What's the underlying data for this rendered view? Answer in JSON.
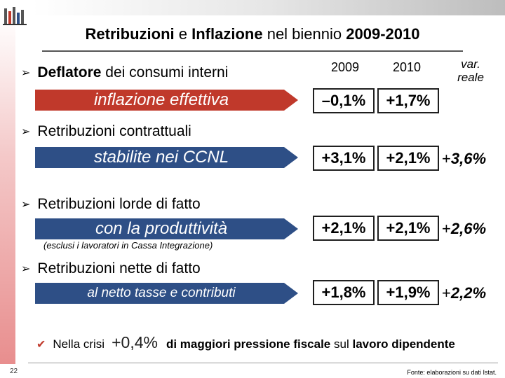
{
  "title": {
    "part1": "Retribuzioni",
    "part2": "e",
    "part3": "Inflazione",
    "part4": "nel biennio",
    "part5": "2009-2010"
  },
  "columns": {
    "y2009": "2009",
    "y2010": "2010",
    "var_line1": "var.",
    "var_line2": "reale"
  },
  "rows": [
    {
      "bullet_bold": "Deflatore",
      "bullet_rest": "dei consumi interni",
      "banner": "inflazione effettiva",
      "banner_color": "#c0392b",
      "v2009": "–0,1%",
      "v2010": "+1,7%",
      "var_plus": "",
      "var_value": ""
    },
    {
      "bullet_bold": "Retribuzioni contrattuali",
      "bullet_rest": "",
      "banner": "stabilite nei CCNL",
      "banner_color": "#2e4f86",
      "v2009": "+3,1%",
      "v2010": "+2,1%",
      "var_plus": "+",
      "var_value": "3,6%"
    },
    {
      "bullet_bold": "Retribuzioni lorde di fatto",
      "bullet_rest": "",
      "banner": "con la produttività",
      "banner_color": "#2e4f86",
      "v2009": "+2,1%",
      "v2010": "+2,1%",
      "var_plus": "+",
      "var_value": "2,6%"
    },
    {
      "bullet_bold": "Retribuzioni nette di fatto",
      "bullet_rest": "",
      "banner": "al netto tasse e contributi",
      "banner_color": "#2e4f86",
      "v2009": "+1,8%",
      "v2010": "+1,9%",
      "var_plus": "+",
      "var_value": "2,2%"
    }
  ],
  "note": "(esclusi i lavoratori in Cassa Integrazione)",
  "crisis": {
    "lead": "Nella crisi",
    "value": "+0,4%",
    "text_bold1": "di maggiori pressione fiscale",
    "text_mid": "sul",
    "text_bold2": "lavoro dipendente"
  },
  "footer": {
    "page": "22",
    "source": "Fonte: elaborazioni su dati Istat."
  }
}
